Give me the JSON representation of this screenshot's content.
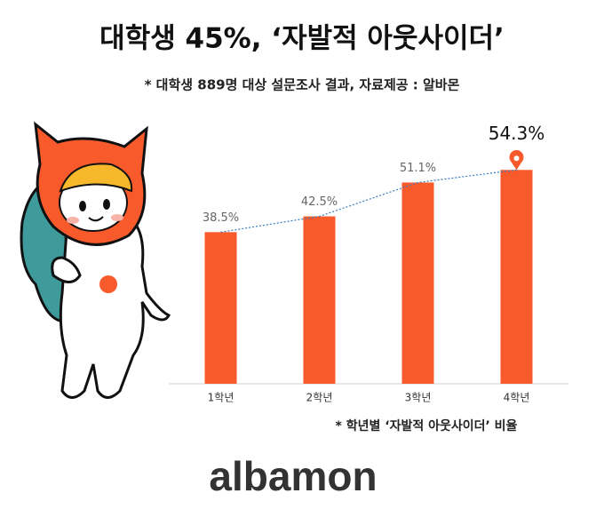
{
  "chart_data": {
    "type": "bar",
    "title": "대학생 45%, ‘자발적 아웃사이더’",
    "subtitle": "* 대학생 889명 대상 설문조사 결과, 자료제공 : 알바몬",
    "note": "* 학년별 ‘자발적 아웃사이더’ 비율",
    "brand": "albamon",
    "categories": [
      "1학년",
      "2학년",
      "3학년",
      "4학년"
    ],
    "values": [
      38.5,
      42.5,
      51.1,
      54.3
    ],
    "value_labels": [
      "38.5%",
      "42.5%",
      "51.1%",
      "54.3%"
    ],
    "color": "#f95a2c",
    "trend_line_color": "#3a7cc0",
    "ylim": [
      0,
      60
    ]
  }
}
